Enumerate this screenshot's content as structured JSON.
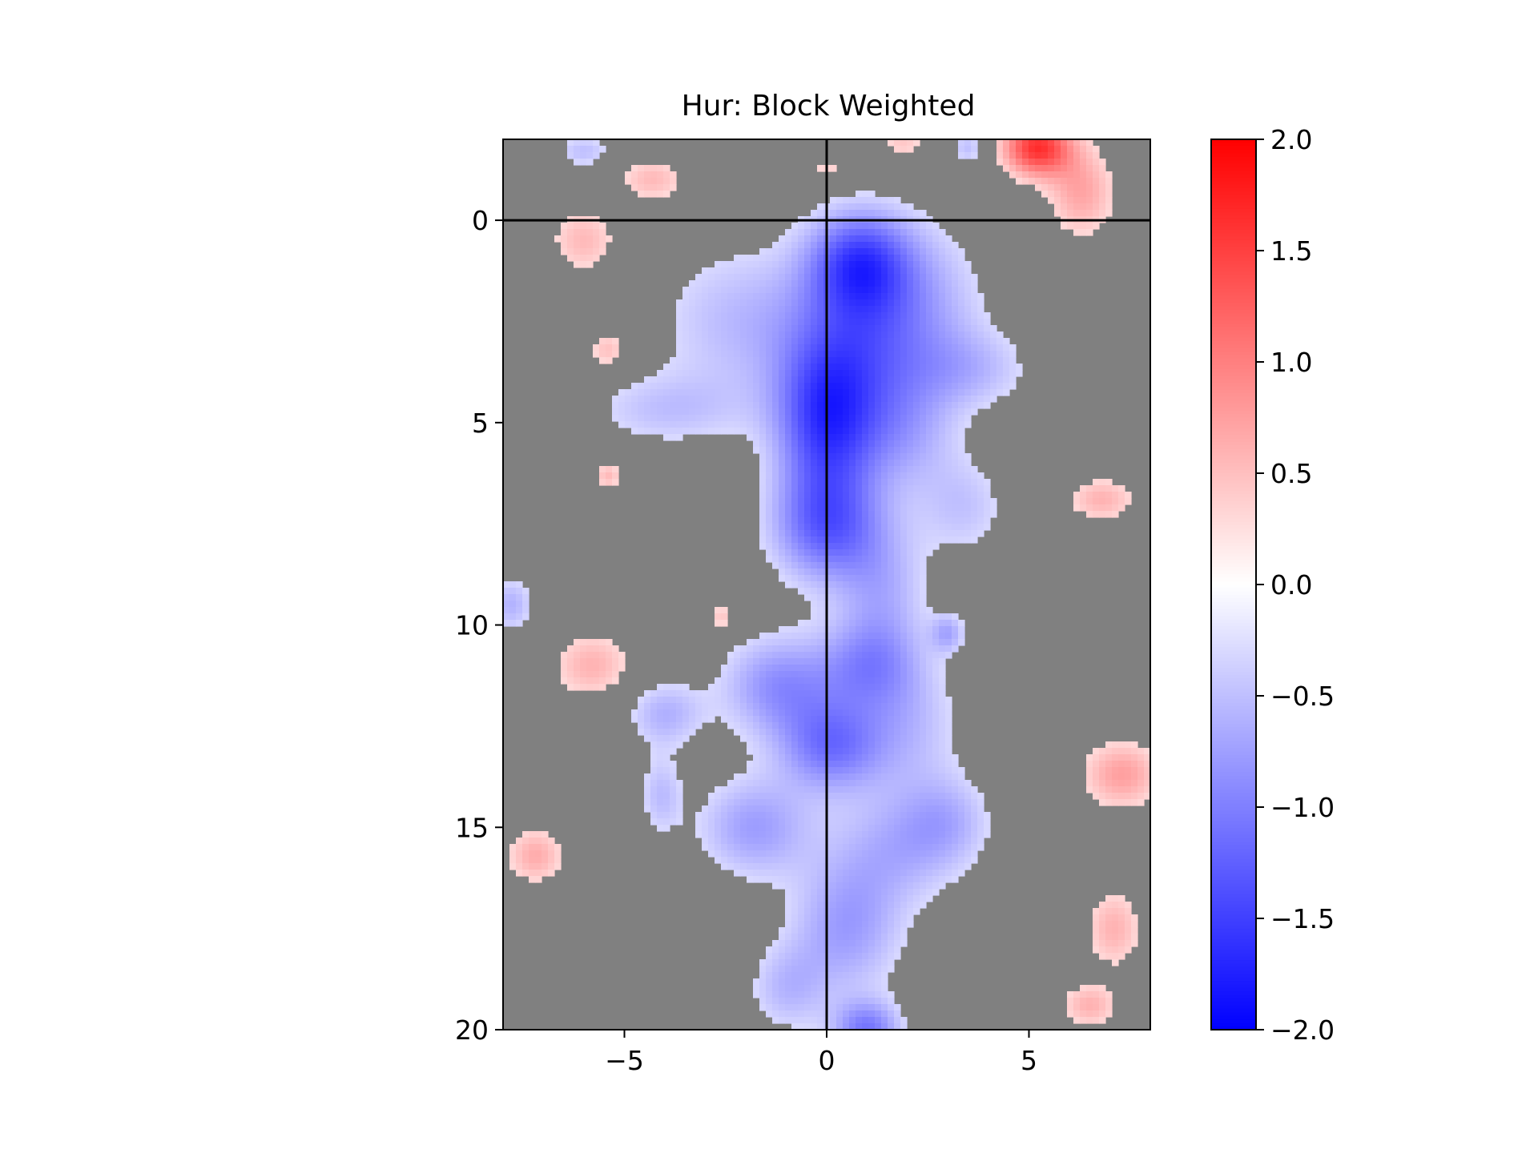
{
  "chart_data": {
    "type": "heatmap",
    "title": "Hur: Block Weighted",
    "xlabel": "",
    "ylabel": "",
    "xlim": [
      -8,
      8
    ],
    "ylim": [
      20,
      -2
    ],
    "x_ticks": [
      "−5",
      "0",
      "5"
    ],
    "x_tick_values": [
      -5,
      0,
      5
    ],
    "y_ticks": [
      "0",
      "5",
      "10",
      "15",
      "20"
    ],
    "y_tick_values": [
      0,
      5,
      10,
      15,
      20
    ],
    "reference_lines": [
      {
        "orientation": "vertical",
        "value": 0
      },
      {
        "orientation": "horizontal",
        "value": 0
      }
    ],
    "masked_color": "#808080",
    "colormap": "bwr",
    "colorbar": {
      "vmin": -2.0,
      "vmax": 2.0,
      "ticks": [
        "−2.0",
        "−1.5",
        "−1.0",
        "−0.5",
        "0.0",
        "0.5",
        "1.0",
        "1.5",
        "2.0"
      ],
      "tick_values": [
        -2.0,
        -1.5,
        -1.0,
        -0.5,
        0.0,
        0.5,
        1.0,
        1.5,
        2.0
      ]
    },
    "field_components": [
      {
        "x": 0.8,
        "y": 1.0,
        "sx": 0.9,
        "sy": 0.9,
        "amp": -1.2
      },
      {
        "x": 0.0,
        "y": 5.0,
        "sx": 0.9,
        "sy": 1.4,
        "amp": -1.4
      },
      {
        "x": 0.0,
        "y": 7.6,
        "sx": 1.0,
        "sy": 1.0,
        "amp": -1.1
      },
      {
        "x": 1.0,
        "y": 3.0,
        "sx": 1.2,
        "sy": 1.5,
        "amp": -0.8
      },
      {
        "x": -2.0,
        "y": 2.5,
        "sx": 1.6,
        "sy": 1.4,
        "amp": -0.55
      },
      {
        "x": 2.5,
        "y": 2.0,
        "sx": 1.2,
        "sy": 1.5,
        "amp": -0.45
      },
      {
        "x": 3.6,
        "y": 3.7,
        "sx": 1.1,
        "sy": 0.7,
        "amp": -0.45
      },
      {
        "x": -4.0,
        "y": 4.7,
        "sx": 1.4,
        "sy": 0.65,
        "amp": -0.45
      },
      {
        "x": 2.0,
        "y": 5.3,
        "sx": 0.9,
        "sy": 1.0,
        "amp": -0.5
      },
      {
        "x": 3.4,
        "y": 7.1,
        "sx": 0.8,
        "sy": 0.9,
        "amp": -0.45
      },
      {
        "x": 1.4,
        "y": 9.2,
        "sx": 0.8,
        "sy": 1.2,
        "amp": -0.55
      },
      {
        "x": 1.0,
        "y": 11.0,
        "sx": 0.9,
        "sy": 0.8,
        "amp": -0.7
      },
      {
        "x": -1.2,
        "y": 11.5,
        "sx": 1.0,
        "sy": 0.9,
        "amp": -0.85
      },
      {
        "x": 0.1,
        "y": 13.0,
        "sx": 0.9,
        "sy": 0.8,
        "amp": -1.0
      },
      {
        "x": 2.0,
        "y": 12.5,
        "sx": 1.0,
        "sy": 1.2,
        "amp": -0.5
      },
      {
        "x": -1.8,
        "y": 15.0,
        "sx": 1.0,
        "sy": 0.9,
        "amp": -0.75
      },
      {
        "x": 1.8,
        "y": 15.5,
        "sx": 1.2,
        "sy": 1.0,
        "amp": -0.55
      },
      {
        "x": 3.0,
        "y": 14.8,
        "sx": 0.8,
        "sy": 0.8,
        "amp": -0.45
      },
      {
        "x": 0.5,
        "y": 17.5,
        "sx": 1.0,
        "sy": 1.2,
        "amp": -0.75
      },
      {
        "x": -1.0,
        "y": 19.0,
        "sx": 0.7,
        "sy": 0.8,
        "amp": -0.5
      },
      {
        "x": 1.0,
        "y": 20.0,
        "sx": 0.6,
        "sy": 0.5,
        "amp": -1.0
      },
      {
        "x": -4.0,
        "y": 12.2,
        "sx": 0.7,
        "sy": 0.6,
        "amp": -0.6
      },
      {
        "x": -4.1,
        "y": 14.2,
        "sx": 0.4,
        "sy": 0.7,
        "amp": -0.5
      },
      {
        "x": -7.8,
        "y": 9.5,
        "sx": 0.4,
        "sy": 0.5,
        "amp": -0.6
      },
      {
        "x": 3.0,
        "y": 10.2,
        "sx": 0.3,
        "sy": 0.35,
        "amp": -0.6
      },
      {
        "x": -6.0,
        "y": -1.7,
        "sx": 0.5,
        "sy": 0.3,
        "amp": -0.5
      },
      {
        "x": 3.5,
        "y": -1.8,
        "sx": 0.3,
        "sy": 0.3,
        "amp": -0.5
      },
      {
        "x": 5.2,
        "y": -1.8,
        "sx": 0.6,
        "sy": 0.5,
        "amp": 1.6
      },
      {
        "x": 6.3,
        "y": -0.7,
        "sx": 0.6,
        "sy": 0.8,
        "amp": 0.7
      },
      {
        "x": -4.3,
        "y": -1.0,
        "sx": 0.6,
        "sy": 0.4,
        "amp": 0.55
      },
      {
        "x": -6.0,
        "y": 0.5,
        "sx": 0.6,
        "sy": 0.6,
        "amp": 0.55
      },
      {
        "x": 1.9,
        "y": -1.9,
        "sx": 0.4,
        "sy": 0.3,
        "amp": 0.45
      },
      {
        "x": 0.1,
        "y": -1.3,
        "sx": 0.5,
        "sy": 0.25,
        "amp": 0.4
      },
      {
        "x": -5.4,
        "y": 3.2,
        "sx": 0.35,
        "sy": 0.35,
        "amp": 0.55
      },
      {
        "x": -5.4,
        "y": 6.3,
        "sx": 0.25,
        "sy": 0.25,
        "amp": 0.55
      },
      {
        "x": 6.8,
        "y": 6.9,
        "sx": 0.6,
        "sy": 0.4,
        "amp": 0.6
      },
      {
        "x": -5.8,
        "y": 11.0,
        "sx": 0.7,
        "sy": 0.6,
        "amp": 0.6
      },
      {
        "x": -7.2,
        "y": 15.7,
        "sx": 0.5,
        "sy": 0.5,
        "amp": 0.65
      },
      {
        "x": 7.3,
        "y": 13.7,
        "sx": 0.7,
        "sy": 0.6,
        "amp": 0.75
      },
      {
        "x": 7.1,
        "y": 17.5,
        "sx": 0.5,
        "sy": 0.7,
        "amp": 0.6
      },
      {
        "x": 6.5,
        "y": 19.4,
        "sx": 0.5,
        "sy": 0.4,
        "amp": 0.6
      },
      {
        "x": -2.6,
        "y": 9.8,
        "sx": 0.2,
        "sy": 0.25,
        "amp": 0.5
      }
    ],
    "significance_threshold": 0.3
  }
}
